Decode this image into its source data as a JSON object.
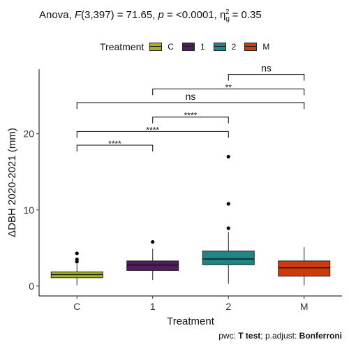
{
  "chart_data": {
    "type": "box",
    "title_prefix": "Anova, ",
    "title_stat": "F",
    "title_stat_args": "(3,397) = 71.65, ",
    "title_p": "p",
    "title_p_value": " = <0.0001, ",
    "title_eta": "η",
    "title_eta_sup": "2",
    "title_eta_sub": "g",
    "title_eta_value": " = 0.35",
    "xlabel": "Treatment",
    "ylabel": "ΔDBH  2020-2021 (mm)",
    "ylim": [
      -1.3,
      28.5
    ],
    "yticks": [
      0,
      10,
      20
    ],
    "legend_title": "Treatment",
    "legend_position": "top",
    "categories": [
      "C",
      "1",
      "2",
      "M"
    ],
    "colors": [
      "#a8b21e",
      "#4e1f5a",
      "#1f8585",
      "#cc3b10"
    ],
    "boxes": [
      {
        "category": "C",
        "whisker_low": 0.1,
        "q1": 1.1,
        "median": 1.5,
        "q3": 1.85,
        "whisker_high": 2.9,
        "outliers": [
          3.2,
          3.5,
          4.3
        ]
      },
      {
        "category": "1",
        "whisker_low": 0.8,
        "q1": 2.05,
        "median": 2.75,
        "q3": 3.3,
        "whisker_high": 4.9,
        "outliers": [
          5.8
        ]
      },
      {
        "category": "2",
        "whisker_low": 0.3,
        "q1": 2.8,
        "median": 3.55,
        "q3": 4.6,
        "whisker_high": 7.1,
        "outliers": [
          7.6,
          10.8,
          17.0
        ]
      },
      {
        "category": "M",
        "whisker_low": 0.1,
        "q1": 1.3,
        "median": 2.4,
        "q3": 3.3,
        "whisker_high": 5.1,
        "outliers": []
      }
    ],
    "comparisons": [
      {
        "from": "C",
        "to": "1",
        "y": 18.5,
        "label": "****"
      },
      {
        "from": "C",
        "to": "2",
        "y": 20.3,
        "label": "****"
      },
      {
        "from": "1",
        "to": "2",
        "y": 22.2,
        "label": "****"
      },
      {
        "from": "C",
        "to": "M",
        "y": 24.1,
        "label": "ns"
      },
      {
        "from": "1",
        "to": "M",
        "y": 25.9,
        "label": "**"
      },
      {
        "from": "2",
        "to": "M",
        "y": 27.8,
        "label": "ns"
      }
    ],
    "caption_prefix": "pwc: ",
    "caption_test": "T test",
    "caption_mid": "; p.adjust: ",
    "caption_method": "Bonferroni"
  }
}
